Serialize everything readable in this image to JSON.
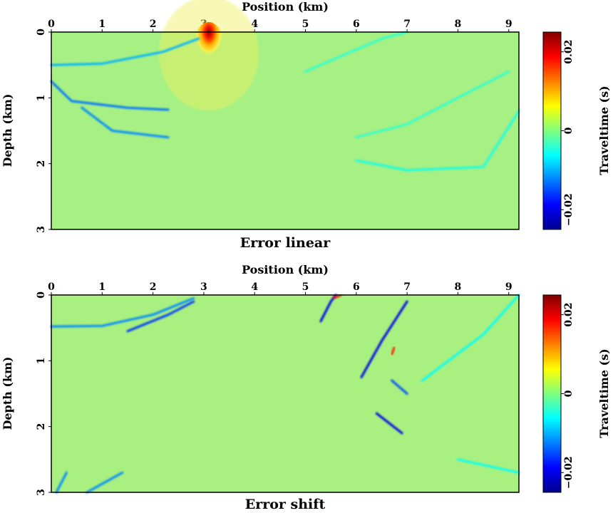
{
  "chart_data": [
    {
      "type": "heatmap",
      "title": "Error linear",
      "xlabel": "Position (km)",
      "ylabel": "Depth (km)",
      "x_ticks": [
        "0",
        "1",
        "2",
        "3",
        "4",
        "5",
        "6",
        "7",
        "8",
        "9"
      ],
      "y_ticks": [
        "0",
        "1",
        "2",
        "3"
      ],
      "xlim": [
        0,
        9.2
      ],
      "ylim": [
        0,
        3
      ],
      "y_inverted": true,
      "x_axis_position": "top",
      "colorbar": {
        "label": "Traveltime (s)",
        "ticks": [
          "0.02",
          "0",
          "−0.02"
        ],
        "tick_values": [
          0.02,
          0,
          -0.02
        ],
        "range": [
          -0.025,
          0.025
        ],
        "colormap": "jet"
      },
      "features": [
        {
          "kind": "source",
          "x": 3.1,
          "y": 0.0,
          "value": 0.025
        },
        {
          "kind": "reflector",
          "points": [
            [
              0,
              0.5
            ],
            [
              1,
              0.48
            ],
            [
              2.2,
              0.3
            ],
            [
              2.9,
              0.1
            ]
          ],
          "value": -0.01
        },
        {
          "kind": "reflector",
          "points": [
            [
              0,
              0.75
            ],
            [
              0.4,
              1.05
            ],
            [
              1.5,
              1.15
            ],
            [
              2.3,
              1.18
            ]
          ],
          "value": -0.013
        },
        {
          "kind": "reflector",
          "points": [
            [
              0.6,
              1.15
            ],
            [
              1.2,
              1.5
            ],
            [
              2.3,
              1.6
            ]
          ],
          "value": -0.012
        },
        {
          "kind": "reflector",
          "points": [
            [
              5.0,
              0.6
            ],
            [
              5.6,
              0.4
            ],
            [
              6.5,
              0.1
            ],
            [
              7.0,
              0.0
            ]
          ],
          "value": -0.004
        },
        {
          "kind": "reflector",
          "points": [
            [
              6.0,
              1.6
            ],
            [
              7.0,
              1.4
            ],
            [
              8.0,
              1.0
            ],
            [
              9.0,
              0.6
            ]
          ],
          "value": -0.004
        },
        {
          "kind": "reflector",
          "points": [
            [
              6.0,
              1.95
            ],
            [
              7.0,
              2.1
            ],
            [
              8.5,
              2.05
            ],
            [
              9.2,
              1.2
            ]
          ],
          "value": -0.005
        }
      ]
    },
    {
      "type": "heatmap",
      "title": "Error shift",
      "xlabel": "Position (km)",
      "ylabel": "Depth (km)",
      "x_ticks": [
        "0",
        "1",
        "2",
        "3",
        "4",
        "5",
        "6",
        "7",
        "8",
        "9"
      ],
      "y_ticks": [
        "0",
        "1",
        "2",
        "3"
      ],
      "xlim": [
        0,
        9.2
      ],
      "ylim": [
        0,
        3
      ],
      "y_inverted": true,
      "x_axis_position": "top",
      "colorbar": {
        "label": "Traveltime (s)",
        "ticks": [
          "0.02",
          "0",
          "−0.02"
        ],
        "tick_values": [
          0.02,
          0,
          -0.02
        ],
        "range": [
          -0.025,
          0.025
        ],
        "colormap": "jet"
      },
      "features": [
        {
          "kind": "reflector",
          "points": [
            [
              0,
              0.48
            ],
            [
              1,
              0.47
            ],
            [
              2.0,
              0.3
            ],
            [
              2.8,
              0.05
            ]
          ],
          "value": -0.012
        },
        {
          "kind": "reflector",
          "points": [
            [
              1.5,
              0.55
            ],
            [
              2.3,
              0.3
            ],
            [
              2.8,
              0.1
            ]
          ],
          "value": -0.016
        },
        {
          "kind": "reflector",
          "points": [
            [
              5.3,
              0.4
            ],
            [
              5.5,
              0.1
            ],
            [
              5.6,
              0.0
            ]
          ],
          "value": -0.02
        },
        {
          "kind": "reflector",
          "points": [
            [
              6.1,
              1.25
            ],
            [
              6.5,
              0.7
            ],
            [
              7.0,
              0.1
            ]
          ],
          "value": -0.02
        },
        {
          "kind": "reflector",
          "points": [
            [
              6.4,
              1.8
            ],
            [
              6.9,
              2.1
            ]
          ],
          "value": -0.02
        },
        {
          "kind": "reflector",
          "points": [
            [
              6.7,
              1.3
            ],
            [
              7.0,
              1.5
            ]
          ],
          "value": -0.015
        },
        {
          "kind": "anomaly",
          "points": [
            [
              5.55,
              0.05
            ],
            [
              5.7,
              0.0
            ]
          ],
          "value": 0.018
        },
        {
          "kind": "anomaly",
          "points": [
            [
              6.75,
              0.8
            ],
            [
              6.7,
              0.9
            ]
          ],
          "value": 0.017
        },
        {
          "kind": "reflector",
          "points": [
            [
              0.1,
              3.0
            ],
            [
              0.3,
              2.7
            ]
          ],
          "value": -0.012
        },
        {
          "kind": "reflector",
          "points": [
            [
              0.7,
              3.0
            ],
            [
              1.4,
              2.7
            ]
          ],
          "value": -0.012
        },
        {
          "kind": "reflector",
          "points": [
            [
              8.0,
              2.5
            ],
            [
              9.2,
              2.7
            ]
          ],
          "value": -0.006
        },
        {
          "kind": "reflector",
          "points": [
            [
              7.3,
              1.3
            ],
            [
              8.5,
              0.6
            ],
            [
              9.2,
              0.0
            ]
          ],
          "value": -0.006
        }
      ]
    }
  ]
}
